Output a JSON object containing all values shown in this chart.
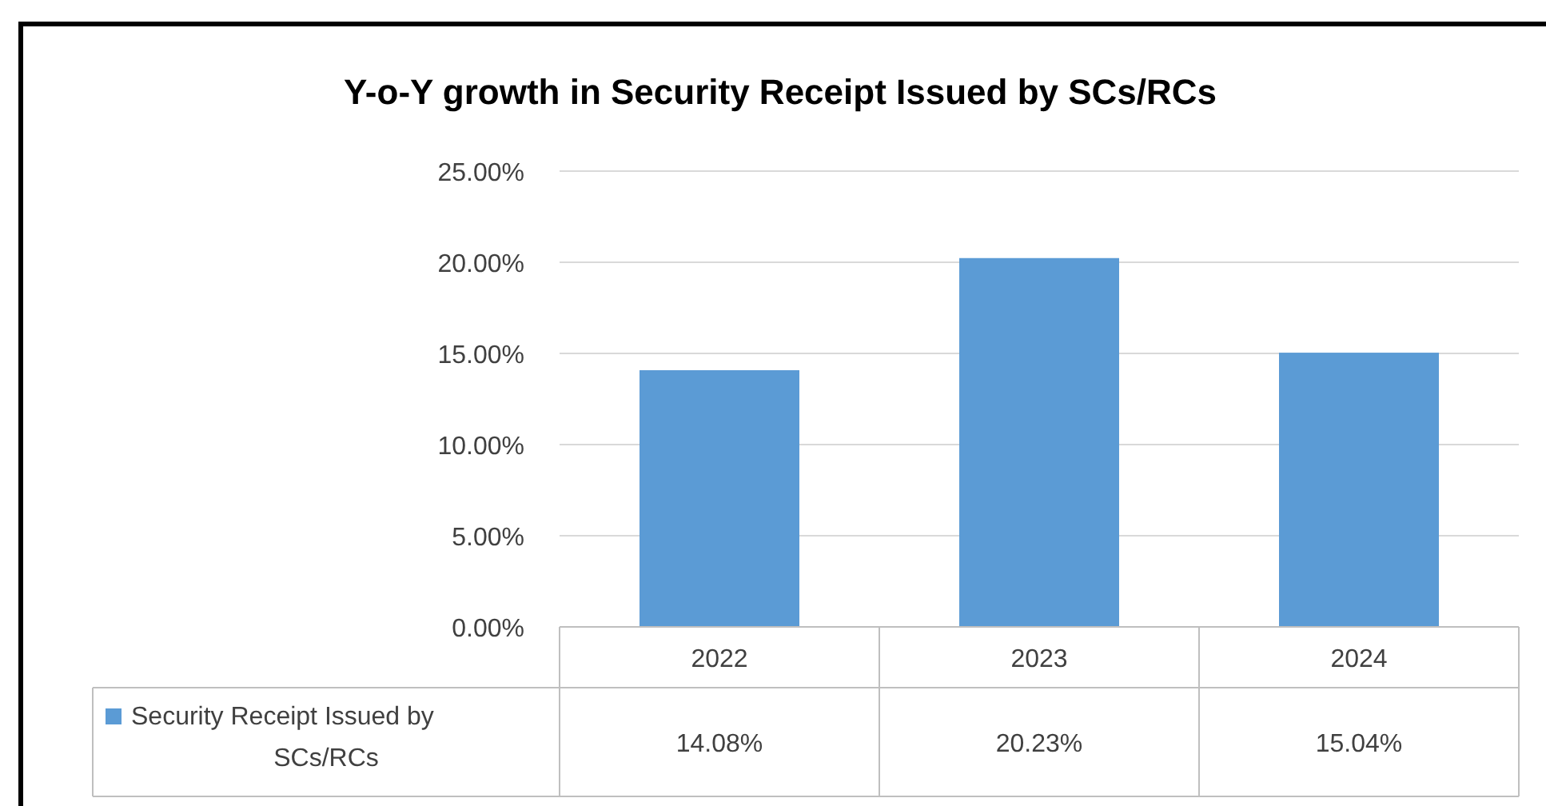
{
  "chart_data": {
    "type": "bar",
    "title": "Y-o-Y growth in Security Receipt Issued by SCs/RCs",
    "categories": [
      "2022",
      "2023",
      "2024"
    ],
    "series": [
      {
        "name": "Security Receipt Issued by SCs/RCs",
        "color": "#5b9bd5",
        "values": [
          14.08,
          20.23,
          15.04
        ],
        "value_labels": [
          "14.08%",
          "20.23%",
          "15.04%"
        ]
      }
    ],
    "ylim": [
      0,
      25
    ],
    "yticks": [
      {
        "value": 0,
        "label": "0.00%"
      },
      {
        "value": 5,
        "label": "5.00%"
      },
      {
        "value": 10,
        "label": "10.00%"
      },
      {
        "value": 15,
        "label": "15.00%"
      },
      {
        "value": 20,
        "label": "20.00%"
      },
      {
        "value": 25,
        "label": "25.00%"
      }
    ],
    "grid": "y",
    "legend": "bottom"
  }
}
